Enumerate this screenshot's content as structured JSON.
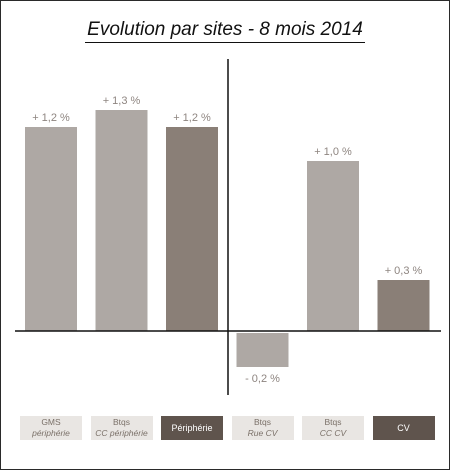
{
  "title": "Evolution par sites - 8 mois 2014",
  "colors": {
    "bar_light": "#aea8a4",
    "bar_dark": "#8a7f77",
    "label_dark_bg": "#5f544d",
    "label_light_bg": "#e9e6e3",
    "value_label": "#8e8580"
  },
  "chart_data": {
    "type": "bar",
    "title": "Evolution par sites - 8 mois 2014",
    "categories": [
      {
        "line1": "GMS",
        "line2": "périphérie",
        "style": "light"
      },
      {
        "line1": "Btqs",
        "line2": "CC périphérie",
        "style": "light"
      },
      {
        "line1": "Périphérie",
        "line2": "",
        "style": "dark"
      },
      {
        "line1": "Btqs",
        "line2": "Rue CV",
        "style": "light"
      },
      {
        "line1": "Btqs",
        "line2": "CC CV",
        "style": "light"
      },
      {
        "line1": "CV",
        "line2": "",
        "style": "dark"
      }
    ],
    "values": [
      1.2,
      1.3,
      1.2,
      -0.2,
      1.0,
      0.3
    ],
    "value_labels": [
      "+ 1,2 %",
      "+ 1,3 %",
      "+ 1,2 %",
      "- 0,2 %",
      "+ 1,0 %",
      "+ 0,3 %"
    ],
    "bar_styles": [
      "light",
      "light",
      "dark",
      "light",
      "light",
      "dark"
    ],
    "ylim": [
      -0.33,
      1.6
    ],
    "xlabel": "",
    "ylabel": "",
    "grid": false,
    "legend": "none"
  }
}
